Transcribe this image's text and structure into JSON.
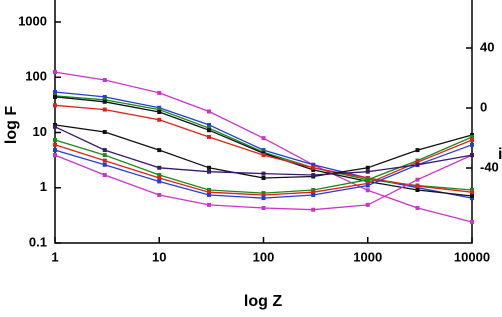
{
  "chart_data": {
    "type": "line",
    "xlabel": "log Z",
    "ylabel": "log F",
    "y2label": "i",
    "x": [
      1,
      3,
      10,
      30,
      100,
      300,
      1000,
      3000,
      10000
    ],
    "xlim": [
      1,
      10000
    ],
    "xticks": [
      1,
      10,
      100,
      1000,
      10000
    ],
    "xscale": "log",
    "ylim": [
      0.1,
      2500
    ],
    "yticks": [
      0.1,
      1,
      10,
      100,
      1000
    ],
    "yscale": "log",
    "y2lim": [
      -90,
      72
    ],
    "y2ticks": [
      -40,
      0,
      40
    ],
    "series": [
      {
        "color": "#cc33cc",
        "values": [
          124,
          89,
          52,
          24,
          7.9,
          2.6,
          0.9,
          0.43,
          0.24
        ]
      },
      {
        "color": "#1f3fd8",
        "values": [
          54,
          44,
          28,
          13.7,
          4.8,
          2.6,
          1.5,
          1.0,
          0.65
        ]
      },
      {
        "color": "#1a8a1a",
        "values": [
          46,
          39,
          26,
          12,
          4.4,
          2.3,
          1.4,
          1.1,
          0.91
        ]
      },
      {
        "color": "#111111",
        "values": [
          44,
          36,
          23.5,
          11,
          4.2,
          2.1,
          1.3,
          0.91,
          0.71
        ]
      },
      {
        "color": "#e0201a",
        "values": [
          31,
          26,
          17,
          8.3,
          3.9,
          2.3,
          1.5,
          1.07,
          0.83
        ]
      },
      {
        "color": "#111111",
        "values": [
          13.7,
          10.2,
          4.8,
          2.3,
          1.5,
          1.6,
          2.3,
          4.8,
          9.0
        ]
      },
      {
        "color": "#1a8a1a",
        "values": [
          7.3,
          3.9,
          1.7,
          0.91,
          0.8,
          0.91,
          1.4,
          3.1,
          8.3
        ]
      },
      {
        "color": "#e0201a",
        "values": [
          6.0,
          3.1,
          1.5,
          0.83,
          0.74,
          0.83,
          1.2,
          2.9,
          7.3
        ]
      },
      {
        "color": "#1f3fd8",
        "values": [
          4.8,
          2.6,
          1.3,
          0.74,
          0.65,
          0.74,
          1.1,
          2.6,
          6.0
        ]
      },
      {
        "color": "#cc33cc",
        "values": [
          3.9,
          1.7,
          0.74,
          0.49,
          0.43,
          0.4,
          0.49,
          1.4,
          3.9
        ]
      },
      {
        "color": "#3a1a6a",
        "values": [
          12.7,
          4.8,
          2.3,
          1.95,
          1.8,
          1.7,
          1.95,
          2.6,
          3.9
        ]
      }
    ]
  }
}
